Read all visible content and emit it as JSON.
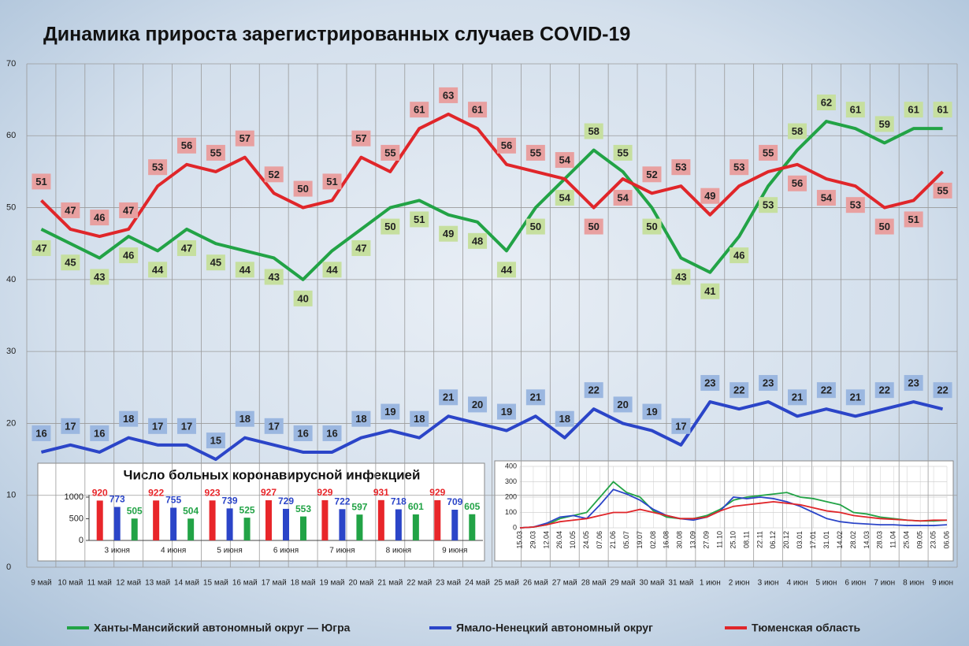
{
  "chart_data": [
    {
      "type": "line",
      "title": "Динамика прироста зарегистрированных случаев COVID-19",
      "categories": [
        "9 май",
        "10 май",
        "11 май",
        "12 май",
        "13 май",
        "14 май",
        "15 май",
        "16 май",
        "17 май",
        "18 май",
        "19 май",
        "20 май",
        "21 май",
        "22 май",
        "23 май",
        "24 май",
        "25 май",
        "26 май",
        "27 май",
        "28 май",
        "29 май",
        "30 май",
        "31 май",
        "1 июн",
        "2 июн",
        "3 июн",
        "4 июн",
        "5 июн",
        "6 июн",
        "7 июн",
        "8 июн",
        "9 июн"
      ],
      "series": [
        {
          "name": "Ханты-Мансийский автономный округ — Югра",
          "color": "#22a346",
          "label_color": "#c6df9f",
          "values": [
            47,
            45,
            43,
            46,
            44,
            47,
            45,
            44,
            43,
            40,
            44,
            47,
            50,
            51,
            49,
            48,
            44,
            50,
            54,
            58,
            55,
            50,
            43,
            41,
            46,
            53,
            58,
            62,
            61,
            59,
            61,
            61
          ]
        },
        {
          "name": "Ямало-Ненецкий автономный округ",
          "color": "#2b45c8",
          "label_color": "#9bb7e0",
          "values": [
            16,
            17,
            16,
            18,
            17,
            17,
            15,
            18,
            17,
            16,
            16,
            18,
            19,
            18,
            21,
            20,
            19,
            21,
            18,
            22,
            20,
            19,
            17,
            23,
            22,
            23,
            21,
            22,
            21,
            22,
            23,
            22
          ]
        },
        {
          "name": "Тюменская область",
          "color": "#e0262a",
          "label_color": "#e8a0a0",
          "values": [
            51,
            47,
            46,
            47,
            53,
            56,
            55,
            57,
            52,
            50,
            51,
            57,
            55,
            61,
            63,
            61,
            56,
            55,
            54,
            50,
            54,
            52,
            53,
            49,
            53,
            55,
            56,
            54,
            53,
            50,
            51,
            55
          ]
        }
      ],
      "ylim": [
        0,
        70
      ],
      "yticks": [
        0,
        10,
        20,
        30,
        40,
        50,
        60,
        70
      ],
      "grid": true,
      "legend": "bottom"
    },
    {
      "type": "bar",
      "title": "Число больных коронавирусной инфекцией",
      "categories": [
        "3 июня",
        "4 июня",
        "5 июня",
        "6 июня",
        "7 июня",
        "8 июня",
        "9 июня"
      ],
      "series": [
        {
          "color": "#e8262a",
          "values": [
            920,
            922,
            923,
            927,
            929,
            931,
            929
          ]
        },
        {
          "color": "#2b45c8",
          "values": [
            773,
            755,
            739,
            729,
            722,
            718,
            709
          ]
        },
        {
          "color": "#22a346",
          "values": [
            505,
            504,
            525,
            553,
            597,
            601,
            605
          ]
        }
      ],
      "ylim": [
        0,
        1000
      ],
      "yticks": [
        0,
        500,
        1000
      ]
    },
    {
      "type": "line",
      "categories": [
        "15.03",
        "29.03",
        "12.04",
        "26.04",
        "10.05",
        "24.05",
        "07.06",
        "21.06",
        "05.07",
        "19.07",
        "02.08",
        "16.08",
        "30.08",
        "13.09",
        "27.09",
        "11.10",
        "25.10",
        "08.11",
        "22.11",
        "06.12",
        "20.12",
        "03.01",
        "17.01",
        "31.01",
        "14.02",
        "28.02",
        "14.03",
        "28.03",
        "11.04",
        "25.04",
        "09.05",
        "23.05",
        "06.06"
      ],
      "series": [
        {
          "color": "#22a346",
          "values": [
            0,
            5,
            20,
            60,
            80,
            100,
            200,
            300,
            230,
            200,
            110,
            70,
            60,
            60,
            80,
            120,
            180,
            200,
            210,
            220,
            230,
            200,
            190,
            170,
            150,
            100,
            90,
            70,
            60,
            50,
            45,
            45,
            50
          ]
        },
        {
          "color": "#2b45c8",
          "values": [
            0,
            5,
            30,
            70,
            80,
            60,
            150,
            250,
            220,
            180,
            120,
            80,
            60,
            50,
            70,
            110,
            200,
            190,
            200,
            190,
            170,
            140,
            100,
            60,
            40,
            30,
            25,
            20,
            20,
            15,
            15,
            15,
            20
          ]
        },
        {
          "color": "#e0262a",
          "values": [
            0,
            5,
            20,
            40,
            50,
            60,
            80,
            100,
            100,
            120,
            100,
            80,
            60,
            60,
            70,
            110,
            140,
            150,
            160,
            170,
            160,
            150,
            130,
            110,
            100,
            80,
            70,
            60,
            55,
            50,
            45,
            50,
            50
          ]
        }
      ],
      "ylim": [
        0,
        400
      ],
      "yticks": [
        0,
        100,
        200,
        300,
        400
      ],
      "grid": true
    }
  ]
}
